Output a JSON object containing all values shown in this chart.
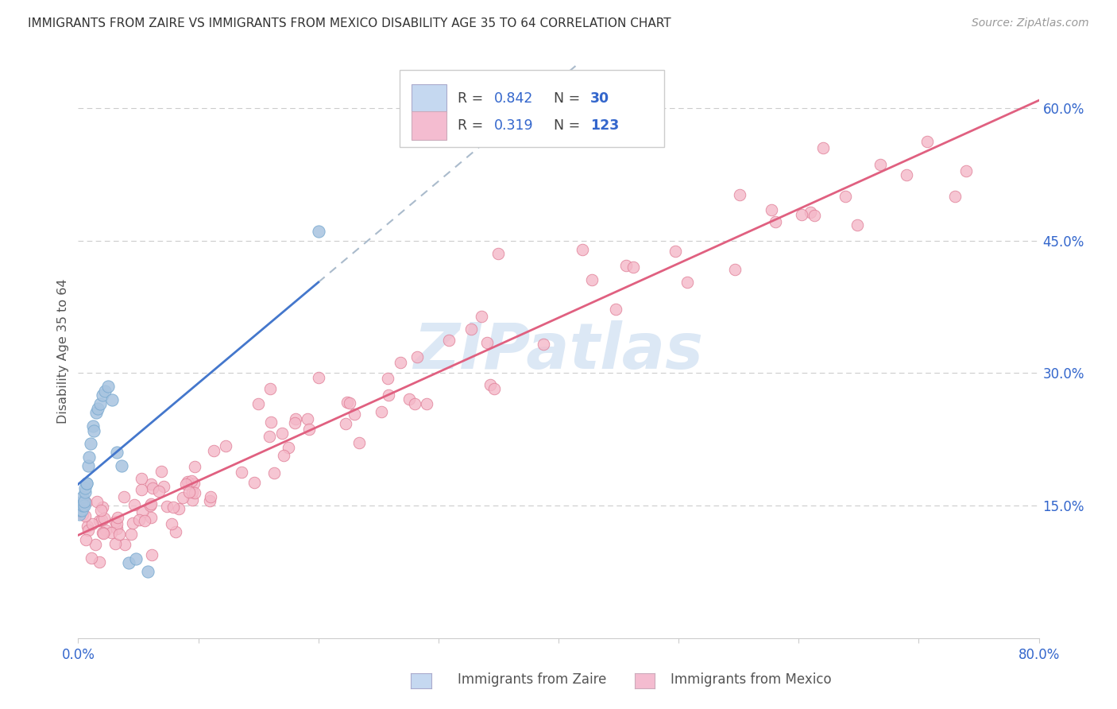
{
  "title": "IMMIGRANTS FROM ZAIRE VS IMMIGRANTS FROM MEXICO DISABILITY AGE 35 TO 64 CORRELATION CHART",
  "source": "Source: ZipAtlas.com",
  "ylabel": "Disability Age 35 to 64",
  "xlim": [
    0.0,
    0.8
  ],
  "ylim": [
    0.0,
    0.65
  ],
  "ytick_right": [
    "15.0%",
    "30.0%",
    "45.0%",
    "60.0%"
  ],
  "ytick_right_vals": [
    0.15,
    0.3,
    0.45,
    0.6
  ],
  "grid_color": "#cccccc",
  "background_color": "#ffffff",
  "zaire_color": "#a8c4e0",
  "zaire_edge": "#7aaad0",
  "mexico_color": "#f4b8c8",
  "mexico_edge": "#e08098",
  "zaire_line_color": "#4477cc",
  "mexico_line_color": "#e06080",
  "dashed_line_color": "#aabbcc",
  "R_zaire": 0.842,
  "N_zaire": 30,
  "R_mexico": 0.319,
  "N_mexico": 123,
  "legend_zaire_fill": "#c5d8f0",
  "legend_mexico_fill": "#f4bcd0",
  "watermark_color": "#dce8f5",
  "figsize": [
    14.06,
    8.92
  ],
  "dpi": 100
}
